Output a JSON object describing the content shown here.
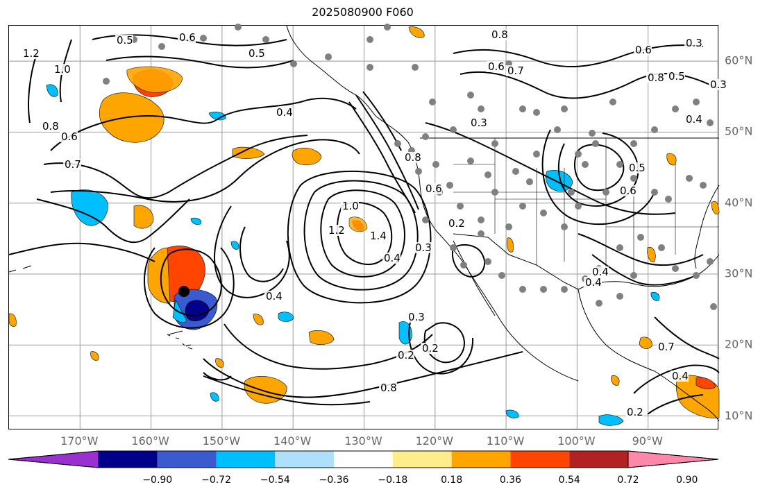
{
  "title": "2025080900 F060",
  "map": {
    "projection": "PlateCarree",
    "lon_range": [
      -180,
      -80
    ],
    "lat_range": [
      8,
      65
    ],
    "lon_ticks": [
      "170°W",
      "160°W",
      "150°W",
      "140°W",
      "130°W",
      "120°W",
      "110°W",
      "100°W",
      "90°W"
    ],
    "lat_ticks": [
      "60°N",
      "50°N",
      "40°N",
      "30°N",
      "20°N",
      "10°N"
    ],
    "grid": true,
    "contour_labels": [
      "1.2",
      "1.0",
      "0.8",
      "0.6",
      "0.7",
      "0.5",
      "0.6",
      "0.5",
      "0.4",
      "0.8",
      "0.7",
      "0.6",
      "0.8",
      "0.6",
      "0.5",
      "0.4",
      "0.3",
      "0.6",
      "0.2",
      "0.3",
      "0.4",
      "0.4",
      "0.6",
      "0.5",
      "0.3",
      "0.8",
      "1.0",
      "1.2",
      "1.4",
      "0.4",
      "0.4",
      "0.3",
      "0.2",
      "0.2",
      "0.8",
      "0.7",
      "0.4",
      "0.3",
      "0.2"
    ],
    "storm_marker": {
      "lon": -155,
      "lat": 27
    }
  },
  "colorbar": {
    "ticks": [
      "−0.90",
      "−0.72",
      "−0.54",
      "−0.36",
      "−0.18",
      "0.18",
      "0.36",
      "0.54",
      "0.72",
      "0.90"
    ],
    "colors": [
      "#9b30d0",
      "#00008b",
      "#3a5bd0",
      "#00bfff",
      "#afe0fb",
      "#ffffff",
      "#ffec8b",
      "#ffa500",
      "#ff4500",
      "#b22222",
      "#ff88aa"
    ]
  }
}
